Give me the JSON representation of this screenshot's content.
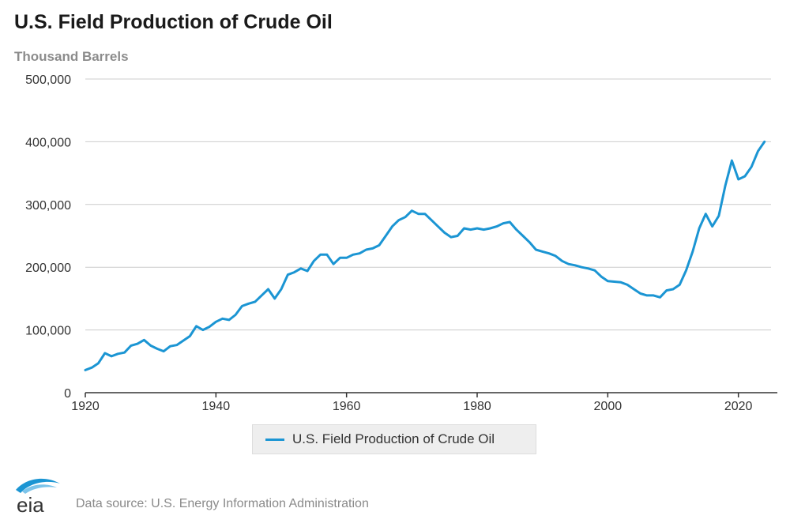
{
  "header": {
    "title": "U.S. Field Production of Crude Oil",
    "subtitle": "Thousand Barrels"
  },
  "legend": {
    "label": "U.S. Field Production of Crude Oil"
  },
  "footer": {
    "logo_text": "eia",
    "source": "Data source: U.S. Energy Information Administration"
  },
  "colors": {
    "series": "#1b95d3",
    "grid": "#cccccc",
    "axis": "#333333"
  },
  "chart_data": {
    "type": "line",
    "title": "U.S. Field Production of Crude Oil",
    "ylabel": "Thousand Barrels",
    "xlim": [
      1920,
      2025
    ],
    "ylim": [
      0,
      500000
    ],
    "x_ticks": [
      1920,
      1940,
      1960,
      1980,
      2000,
      2020
    ],
    "x_tick_labels": [
      "1920",
      "1940",
      "1960",
      "1980",
      "2000",
      "2020"
    ],
    "y_ticks": [
      0,
      100000,
      200000,
      300000,
      400000,
      500000
    ],
    "y_tick_labels": [
      "0",
      "100,000",
      "200,000",
      "300,000",
      "400,000",
      "500,000"
    ],
    "grid": true,
    "legend_position": "bottom-center",
    "series": [
      {
        "name": "U.S. Field Production of Crude Oil",
        "x": [
          1920,
          1921,
          1922,
          1923,
          1924,
          1925,
          1926,
          1927,
          1928,
          1929,
          1930,
          1931,
          1932,
          1933,
          1934,
          1935,
          1936,
          1937,
          1938,
          1939,
          1940,
          1941,
          1942,
          1943,
          1944,
          1945,
          1946,
          1947,
          1948,
          1949,
          1950,
          1951,
          1952,
          1953,
          1954,
          1955,
          1956,
          1957,
          1958,
          1959,
          1960,
          1961,
          1962,
          1963,
          1964,
          1965,
          1966,
          1967,
          1968,
          1969,
          1970,
          1971,
          1972,
          1973,
          1974,
          1975,
          1976,
          1977,
          1978,
          1979,
          1980,
          1981,
          1982,
          1983,
          1984,
          1985,
          1986,
          1987,
          1988,
          1989,
          1990,
          1991,
          1992,
          1993,
          1994,
          1995,
          1996,
          1997,
          1998,
          1999,
          2000,
          2001,
          2002,
          2003,
          2004,
          2005,
          2006,
          2007,
          2008,
          2009,
          2010,
          2011,
          2012,
          2013,
          2014,
          2015,
          2016,
          2017,
          2018,
          2019,
          2020,
          2021,
          2022,
          2023,
          2024
        ],
        "values": [
          36000,
          40000,
          47000,
          63000,
          58000,
          62000,
          64000,
          75000,
          78000,
          84000,
          75000,
          70000,
          66000,
          74000,
          76000,
          83000,
          90000,
          106000,
          100000,
          105000,
          113000,
          118000,
          116000,
          124000,
          138000,
          142000,
          145000,
          155000,
          165000,
          150000,
          165000,
          188000,
          192000,
          198000,
          194000,
          210000,
          220000,
          220000,
          205000,
          215000,
          215000,
          220000,
          222000,
          228000,
          230000,
          235000,
          250000,
          265000,
          275000,
          280000,
          290000,
          285000,
          285000,
          275000,
          265000,
          255000,
          248000,
          250000,
          262000,
          260000,
          262000,
          260000,
          262000,
          265000,
          270000,
          272000,
          260000,
          250000,
          240000,
          228000,
          225000,
          222000,
          218000,
          210000,
          205000,
          203000,
          200000,
          198000,
          195000,
          185000,
          178000,
          177000,
          176000,
          172000,
          165000,
          158000,
          155000,
          155000,
          152000,
          163000,
          165000,
          172000,
          195000,
          225000,
          262000,
          285000,
          265000,
          282000,
          330000,
          370000,
          340000,
          345000,
          360000,
          385000,
          400000
        ]
      }
    ]
  }
}
